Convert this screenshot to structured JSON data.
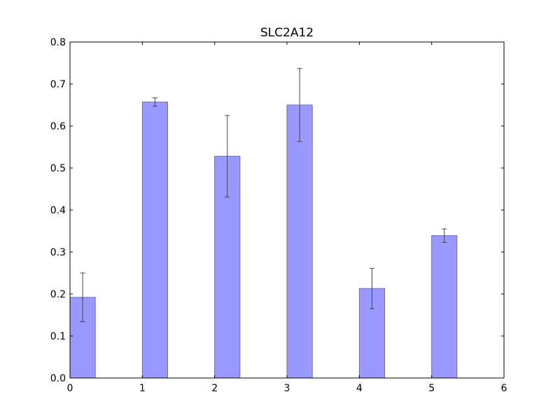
{
  "chart_data": {
    "type": "bar",
    "title": "SLC2A12",
    "xlabel": "",
    "ylabel": "",
    "x": [
      0,
      1,
      2,
      3,
      4,
      5
    ],
    "values": [
      0.192,
      0.657,
      0.528,
      0.65,
      0.213,
      0.339
    ],
    "errors": [
      0.058,
      0.01,
      0.097,
      0.087,
      0.048,
      0.016
    ],
    "bar_width": 0.35,
    "xlim": [
      0,
      6
    ],
    "ylim": [
      0,
      0.8
    ],
    "xticks": [
      "0",
      "1",
      "2",
      "3",
      "4",
      "5",
      "6"
    ],
    "yticks": [
      "0.0",
      "0.1",
      "0.2",
      "0.3",
      "0.4",
      "0.5",
      "0.6",
      "0.7",
      "0.8"
    ],
    "bar_color": "#9999ff",
    "bar_edge_color": "#6a6ab8",
    "error_color": "#444444",
    "grid": false,
    "legend": "none"
  }
}
